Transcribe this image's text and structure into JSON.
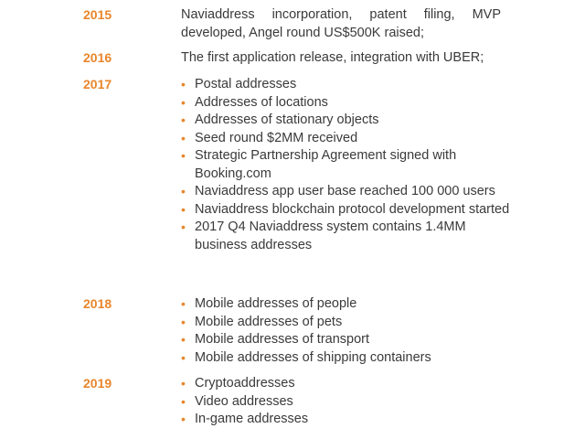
{
  "colors": {
    "accent": "#e8862b",
    "text": "#3a3a3a"
  },
  "timeline": [
    {
      "year": "2015",
      "text": "Naviaddress incorporation, patent filing, MVP developed, Angel round US$500K raised;"
    },
    {
      "year": "2016",
      "text": "The first application release, integration with UBER;"
    },
    {
      "year": "2017",
      "items": [
        "Postal addresses",
        "Addresses of locations",
        "Addresses of stationary objects",
        "Seed round $2MM received",
        "Strategic Partnership Agreement signed with Booking.com",
        "Naviaddress app user base reached 100 000 users",
        "Naviaddress blockchain protocol development started",
        "2017 Q4 Naviaddress system contains 1.4MM business addresses"
      ]
    },
    {
      "year": "2018",
      "items": [
        "Mobile addresses of people",
        "Mobile addresses of pets",
        "Mobile addresses of transport",
        "Mobile addresses of shipping containers"
      ]
    },
    {
      "year": "2019",
      "items": [
        "Cryptoaddresses",
        "Video addresses",
        "In-game addresses"
      ]
    }
  ]
}
